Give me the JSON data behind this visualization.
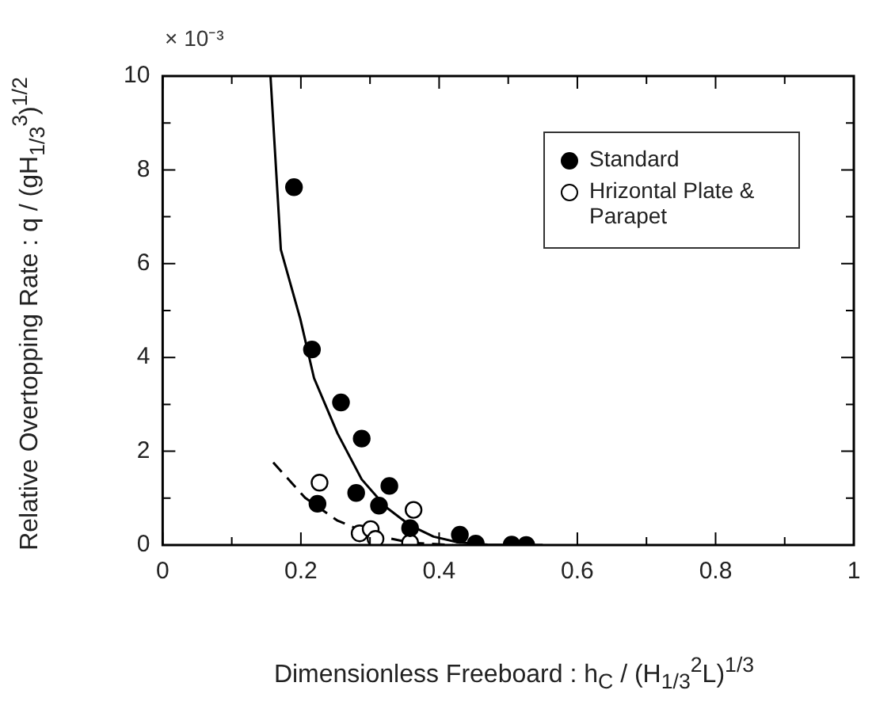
{
  "chart_data": {
    "type": "scatter",
    "xlabel": "Dimensionless Freeboard : h$_{C}$ / (H$_{1/3}$$^{2}$L)$^{1/3}$",
    "ylabel": "Relative Overtopping Rate : q / (gH$_{1/3}$$^{3}$)$^{1/2}$",
    "annotations": [
      "× 10⁻³"
    ],
    "xlim": [
      0,
      1
    ],
    "ylim": [
      0,
      10
    ],
    "xticks": [
      0,
      {
        "value": 0.1,
        "label": null
      },
      0.2,
      {
        "value": 0.3,
        "label": null
      },
      0.4,
      {
        "value": 0.5,
        "label": null
      },
      0.6,
      {
        "value": 0.7,
        "label": null
      },
      0.8,
      {
        "value": 0.9,
        "label": null
      },
      1
    ],
    "yticks": [
      0,
      {
        "value": 1,
        "label": null
      },
      2,
      {
        "value": 3,
        "label": null
      },
      4,
      {
        "value": 5,
        "label": null
      },
      6,
      {
        "value": 7,
        "label": null
      },
      8,
      {
        "value": 9,
        "label": null
      },
      10
    ],
    "grid": false,
    "legend": "top right",
    "series": [
      {
        "name": "Standard",
        "marker": "circle",
        "color": "#000000",
        "x": [
          0.19,
          0.216,
          0.258,
          0.288,
          0.28,
          0.224,
          0.313,
          0.328,
          0.358,
          0.43,
          0.453,
          0.505,
          0.526
        ],
        "values": [
          7.63,
          4.17,
          3.04,
          2.27,
          1.11,
          0.88,
          0.84,
          1.26,
          0.36,
          0.22,
          0.03,
          0.01,
          0
        ]
      },
      {
        "name": "Hrizontal Plate & Parapet",
        "marker": "circle",
        "color": "#ffffff",
        "x": [
          0.227,
          0.285,
          0.301,
          0.308,
          0.363,
          0.358
        ],
        "values": [
          1.33,
          0.25,
          0.34,
          0.13,
          0.75,
          0.05
        ]
      },
      {
        "type": "line",
        "line_style": "solid",
        "color": "#000000",
        "x": [
          0.156,
          0.171,
          0.199,
          0.219,
          0.253,
          0.288,
          0.323,
          0.358,
          0.392,
          0.427,
          0.47,
          0.55
        ],
        "values": [
          10,
          6.3,
          4.83,
          3.56,
          2.38,
          1.4,
          0.81,
          0.42,
          0.18,
          0.06,
          0.01,
          0
        ]
      },
      {
        "type": "line",
        "line_style": "dashed",
        "color": "#000000",
        "x": [
          0.16,
          0.206,
          0.253,
          0.301,
          0.358,
          0.42
        ],
        "values": [
          1.76,
          1.01,
          0.52,
          0.23,
          0.05,
          0
        ]
      }
    ]
  }
}
